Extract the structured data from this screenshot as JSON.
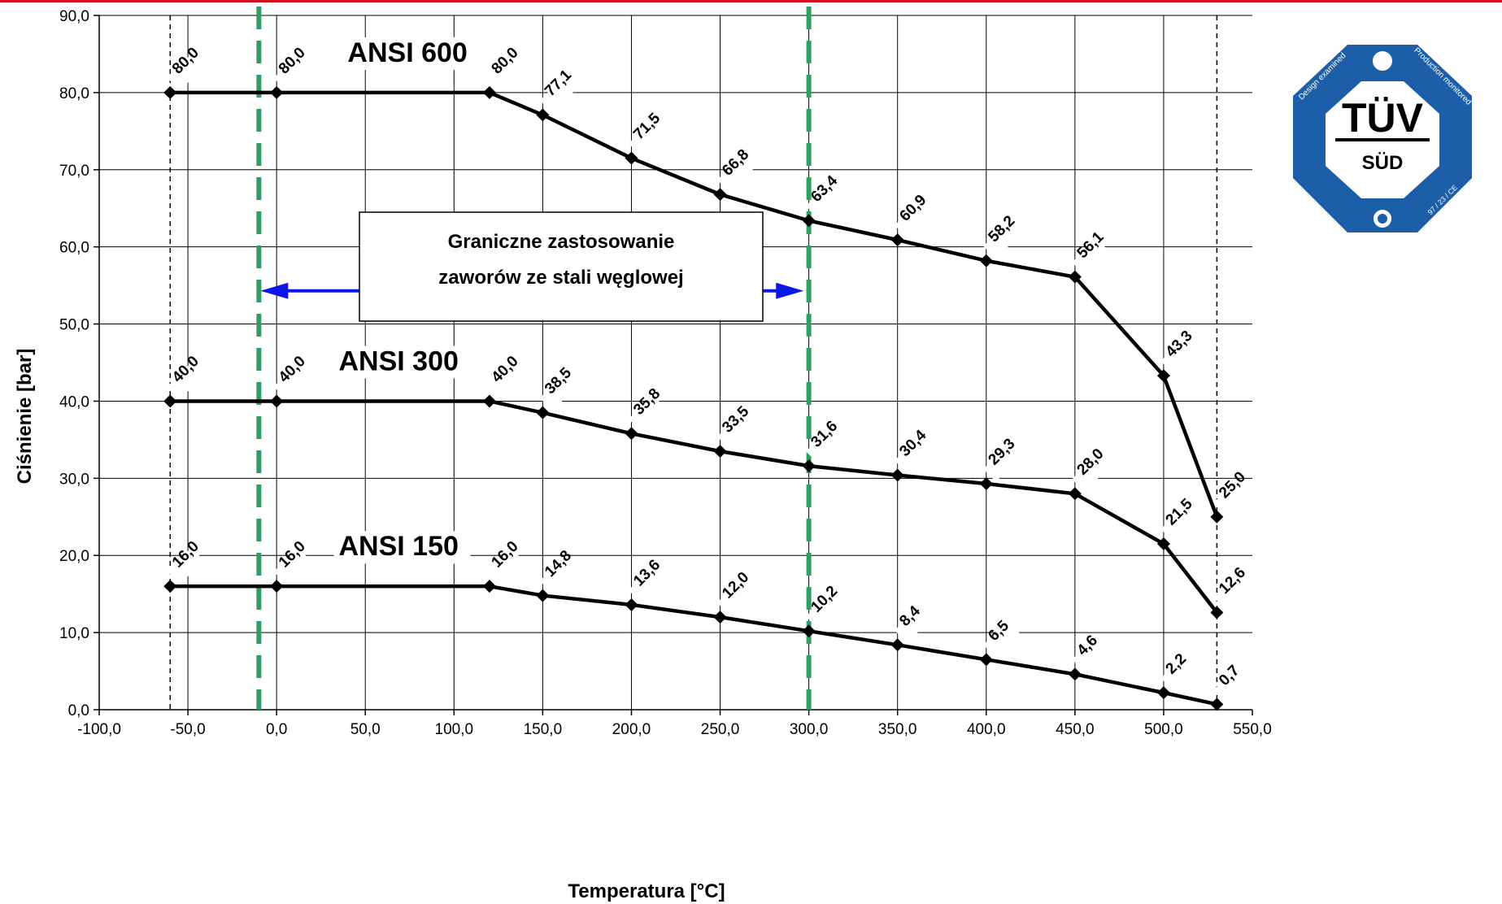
{
  "chart_data": {
    "type": "line",
    "xlabel": "Temperatura [°C]",
    "ylabel": "Ciśnienie [bar]",
    "xlim": [
      -100,
      550
    ],
    "ylim": [
      0,
      90
    ],
    "x_ticks": [
      -100,
      -50,
      0,
      50,
      100,
      150,
      200,
      250,
      300,
      350,
      400,
      450,
      500,
      550
    ],
    "x_tick_labels": [
      "-100,0",
      "-50,0",
      "0,0",
      "50,0",
      "100,0",
      "150,0",
      "200,0",
      "250,0",
      "300,0",
      "350,0",
      "400,0",
      "450,0",
      "500,0",
      "550,0"
    ],
    "y_ticks": [
      0,
      10,
      20,
      30,
      40,
      50,
      60,
      70,
      80,
      90
    ],
    "y_tick_labels": [
      "0,0",
      "10,0",
      "20,0",
      "30,0",
      "40,0",
      "50,0",
      "60,0",
      "70,0",
      "80,0",
      "90,0"
    ],
    "grid": true,
    "series": [
      {
        "name": "ANSI 600",
        "color": "#000000",
        "points": [
          [
            -60,
            80.0
          ],
          [
            0,
            80.0
          ],
          [
            120,
            80.0
          ],
          [
            150,
            77.1
          ],
          [
            200,
            71.5
          ],
          [
            250,
            66.8
          ],
          [
            300,
            63.4
          ],
          [
            350,
            60.9
          ],
          [
            400,
            58.2
          ],
          [
            450,
            56.1
          ],
          [
            500,
            43.3
          ],
          [
            530,
            25.0
          ]
        ],
        "labels": [
          "80,0",
          "80,0",
          "80,0",
          "77,1",
          "71,5",
          "66,8",
          "63,4",
          "60,9",
          "58,2",
          "56,1",
          "43,3",
          "25,0"
        ]
      },
      {
        "name": "ANSI 300",
        "color": "#000000",
        "points": [
          [
            -60,
            40.0
          ],
          [
            0,
            40.0
          ],
          [
            120,
            40.0
          ],
          [
            150,
            38.5
          ],
          [
            200,
            35.8
          ],
          [
            250,
            33.5
          ],
          [
            300,
            31.6
          ],
          [
            350,
            30.4
          ],
          [
            400,
            29.3
          ],
          [
            450,
            28.0
          ],
          [
            500,
            21.5
          ],
          [
            530,
            12.6
          ]
        ],
        "labels": [
          "40,0",
          "40,0",
          "40,0",
          "38,5",
          "35,8",
          "33,5",
          "31,6",
          "30,4",
          "29,3",
          "28,0",
          "21,5",
          "12,6"
        ]
      },
      {
        "name": "ANSI 150",
        "color": "#000000",
        "points": [
          [
            -60,
            16.0
          ],
          [
            0,
            16.0
          ],
          [
            120,
            16.0
          ],
          [
            150,
            14.8
          ],
          [
            200,
            13.6
          ],
          [
            250,
            12.0
          ],
          [
            300,
            10.2
          ],
          [
            350,
            8.4
          ],
          [
            400,
            6.5
          ],
          [
            450,
            4.6
          ],
          [
            500,
            2.2
          ],
          [
            530,
            0.7
          ]
        ],
        "labels": [
          "16,0",
          "16,0",
          "16,0",
          "14,8",
          "13,6",
          "12,0",
          "10,2",
          "8,4",
          "6,5",
          "4,6",
          "2,2",
          "0,7"
        ]
      }
    ],
    "class_labels": [
      {
        "text": "ANSI 600",
        "x": 40,
        "y": 84
      },
      {
        "text": "ANSI 300",
        "x": 35,
        "y": 44
      },
      {
        "text": "ANSI 150",
        "x": 35,
        "y": 20
      }
    ],
    "reference_lines": {
      "black_dashed_x": [
        -60,
        530
      ],
      "green_dashed_x": [
        -10,
        300
      ],
      "green_color": "#2e9e63",
      "range_arrow": {
        "x_from": -10,
        "x_to": 298,
        "y": 54.3,
        "color": "#0a17e8"
      }
    },
    "annotation": {
      "lines": [
        "Graniczne zastosowanie",
        "zaworów ze stali węglowej"
      ]
    }
  },
  "badge": {
    "brand": "TÜV",
    "sub": "SÜD",
    "text_left": "Design examined",
    "text_right": "Production monitored",
    "text_bottom_right": "97 / 23 / CE",
    "symbol_top": "S",
    "color": "#1c5fa8"
  }
}
